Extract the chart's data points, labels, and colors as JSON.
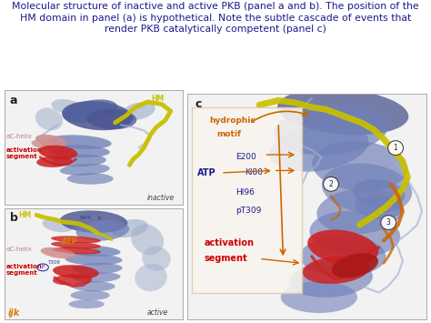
{
  "title_line1": "Molecular structure of inactive and active PKB (panel a and b). The position of the",
  "title_line2": "HM domain in panel (a) is hypothetical. Note the subtle cascade of events that",
  "title_line3": "render PKB catalytically competent (panel c)",
  "title_color": "#1a1a8c",
  "title_fontsize": 7.8,
  "bg_color": "#ffffff",
  "panel_bg_a": "#f2f2f2",
  "panel_bg_b": "#f2f2f2",
  "panel_bg_c": "#f2f2f2",
  "protein_blue": "#7080b8",
  "protein_blue_dark": "#4a5490",
  "protein_blue_light": "#a0b0cc",
  "protein_yellow": "#c8c000",
  "protein_red": "#cc2020",
  "protein_pink": "#d09090",
  "protein_orange": "#cc6600",
  "overlay_bg": "#f8f4ee",
  "orange": "#cc6600",
  "navy": "#1a1a8c",
  "red": "#cc0000",
  "gray_label": "#888888",
  "panel_border": "#aaaaaa",
  "figure_width": 4.74,
  "figure_height": 3.55,
  "dpi": 100
}
